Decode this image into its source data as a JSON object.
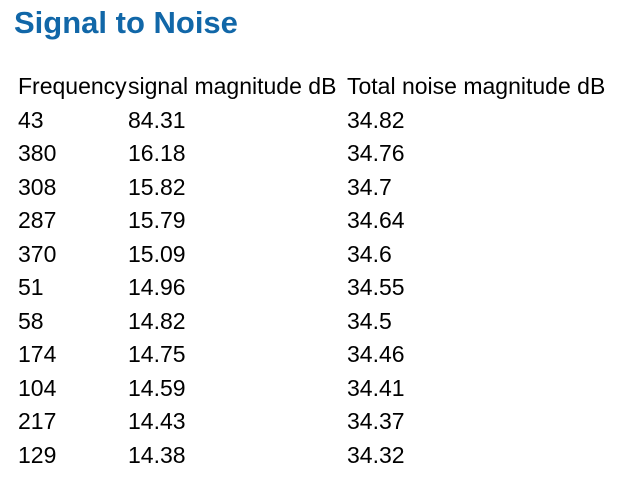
{
  "page": {
    "title": "Signal to Noise"
  },
  "colors": {
    "title": "#1167a8",
    "text": "#000000",
    "background": "#ffffff"
  },
  "table": {
    "columns": [
      "Frequency",
      "signal magnitude dB",
      "Total noise magnitude dB"
    ],
    "rows": [
      [
        "43",
        "84.31",
        "34.82"
      ],
      [
        "380",
        "16.18",
        "34.76"
      ],
      [
        "308",
        "15.82",
        "34.7"
      ],
      [
        "287",
        "15.79",
        "34.64"
      ],
      [
        "370",
        "15.09",
        "34.6"
      ],
      [
        "51",
        "14.96",
        "34.55"
      ],
      [
        "58",
        "14.82",
        "34.5"
      ],
      [
        "174",
        "14.75",
        "34.46"
      ],
      [
        "104",
        "14.59",
        "34.41"
      ],
      [
        "217",
        "14.43",
        "34.37"
      ],
      [
        "129",
        "14.38",
        "34.32"
      ]
    ]
  }
}
